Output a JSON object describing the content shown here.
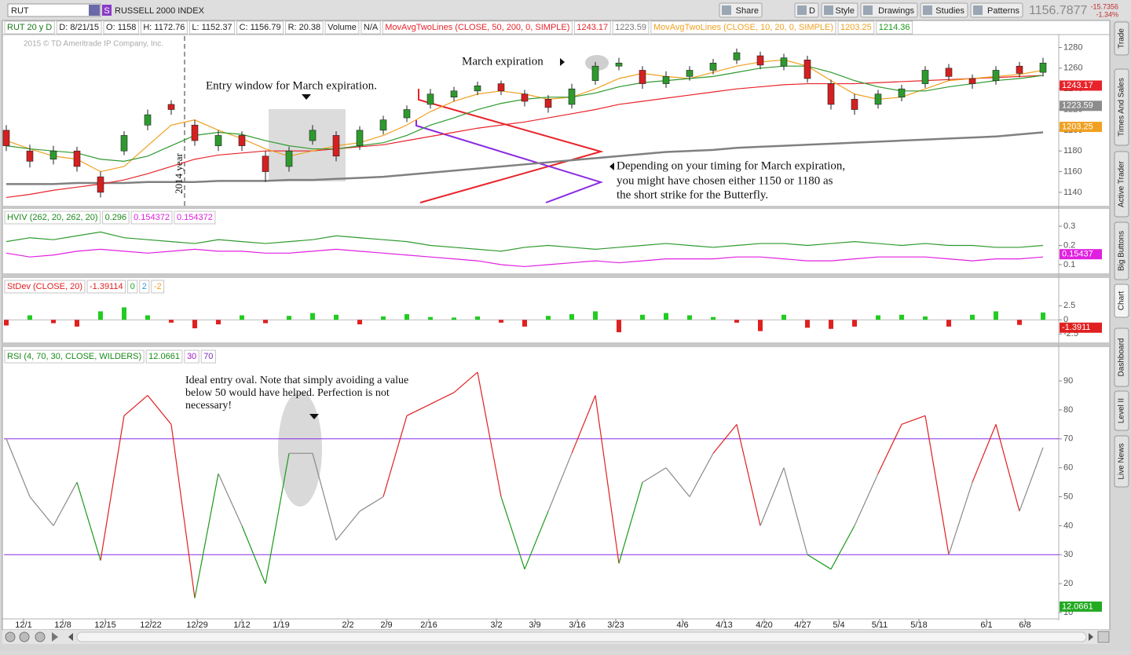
{
  "toolbar": {
    "symbol": "RUT",
    "badge": "S",
    "description": "RUSSELL 2000 INDEX",
    "buttons": [
      "Share",
      "D",
      "Style",
      "Drawings",
      "Studies",
      "Patterns"
    ],
    "last": "1156.7877",
    "change": "-15.7356",
    "change_pct": "-1.34%"
  },
  "info_bar": [
    "RUT 20 y D",
    "D: 8/21/15",
    "O: 1158",
    "H: 1172.76",
    "L: 1152.37",
    "C: 1156.79",
    "R: 20.38",
    "Volume",
    "N/A",
    "MovAvgTwoLines (CLOSE, 50, 200, 0, SIMPLE)",
    "1243.17",
    "1223.59",
    "MovAvgTwoLines (CLOSE, 10, 20, 0, SIMPLE)",
    "1203.25",
    "1214.36"
  ],
  "side_tabs": [
    "Trade",
    "Times And Sales",
    "Active Trader",
    "Big Buttons",
    "Chart",
    "Dashboard",
    "Level II",
    "Live News"
  ],
  "chart_data": [
    {
      "type": "candlestick",
      "copyright": "2015 © TD Ameritrade IP Company, Inc.",
      "annotations": [
        "Entry window for March expiration.",
        "March expiration",
        "Depending on your timing for March expiration,",
        "you might have chosen either 1150 or 1180 as",
        "the short strike for the Butterfly.",
        "2014 year"
      ],
      "xlim": [
        0,
        134
      ],
      "x": [
        0,
        3,
        6,
        9,
        12,
        15,
        18,
        21,
        24,
        27,
        30,
        33,
        36,
        39,
        42,
        45,
        48,
        51,
        54,
        57,
        60,
        63,
        66,
        69,
        72,
        75,
        78,
        81,
        84,
        87,
        90,
        93,
        96,
        99,
        102,
        105,
        108,
        111,
        114,
        117,
        120,
        123,
        126,
        129,
        132
      ],
      "open": [
        1200,
        1180,
        1172,
        1180,
        1155,
        1180,
        1205,
        1225,
        1205,
        1185,
        1195,
        1175,
        1165,
        1190,
        1195,
        1185,
        1200,
        1212,
        1225,
        1232,
        1238,
        1245,
        1235,
        1230,
        1225,
        1248,
        1262,
        1258,
        1245,
        1252,
        1258,
        1268,
        1272,
        1262,
        1268,
        1245,
        1230,
        1225,
        1232,
        1245,
        1260,
        1250,
        1248,
        1262,
        1256
      ],
      "high": [
        1205,
        1186,
        1185,
        1184,
        1160,
        1199,
        1220,
        1229,
        1210,
        1200,
        1199,
        1180,
        1184,
        1205,
        1199,
        1204,
        1214,
        1224,
        1240,
        1242,
        1247,
        1248,
        1239,
        1234,
        1245,
        1266,
        1270,
        1262,
        1257,
        1262,
        1269,
        1279,
        1276,
        1274,
        1272,
        1249,
        1235,
        1239,
        1244,
        1262,
        1264,
        1254,
        1262,
        1266,
        1270
      ],
      "low": [
        1180,
        1164,
        1167,
        1160,
        1135,
        1176,
        1200,
        1215,
        1185,
        1180,
        1180,
        1150,
        1160,
        1186,
        1170,
        1181,
        1196,
        1208,
        1221,
        1228,
        1234,
        1234,
        1223,
        1217,
        1221,
        1244,
        1258,
        1240,
        1241,
        1248,
        1254,
        1264,
        1259,
        1258,
        1246,
        1220,
        1215,
        1221,
        1228,
        1241,
        1248,
        1240,
        1244,
        1251,
        1252
      ],
      "close": [
        1185,
        1170,
        1180,
        1165,
        1140,
        1195,
        1215,
        1220,
        1190,
        1195,
        1185,
        1160,
        1180,
        1200,
        1175,
        1200,
        1210,
        1220,
        1235,
        1238,
        1243,
        1238,
        1228,
        1222,
        1240,
        1262,
        1265,
        1245,
        1252,
        1258,
        1265,
        1275,
        1263,
        1270,
        1250,
        1225,
        1220,
        1235,
        1240,
        1258,
        1252,
        1245,
        1258,
        1255,
        1265
      ],
      "series": [
        {
          "color": "#808080",
          "values": [
            1148,
            1148,
            1148,
            1149,
            1149,
            1149,
            1150,
            1150,
            1150,
            1151,
            1151,
            1151,
            1152,
            1152,
            1153,
            1154,
            1155,
            1157,
            1159,
            1161,
            1163,
            1165,
            1167,
            1169,
            1171,
            1173,
            1175,
            1177,
            1179,
            1180,
            1181,
            1183,
            1184,
            1185,
            1186,
            1187,
            1188,
            1189,
            1190,
            1191,
            1192,
            1193,
            1194,
            1196,
            1198
          ]
        },
        {
          "color": "#e8232a",
          "values": [
            1135,
            1138,
            1142,
            1145,
            1148,
            1152,
            1158,
            1165,
            1172,
            1176,
            1178,
            1180,
            1180,
            1180,
            1182,
            1184,
            1186,
            1190,
            1194,
            1198,
            1202,
            1205,
            1208,
            1212,
            1216,
            1220,
            1225,
            1228,
            1231,
            1234,
            1237,
            1240,
            1242,
            1244,
            1245,
            1245,
            1245,
            1246,
            1247,
            1248,
            1249,
            1250,
            1251,
            1252,
            1253
          ]
        },
        {
          "color": "#f0a020",
          "values": [
            1190,
            1182,
            1175,
            1172,
            1160,
            1165,
            1185,
            1205,
            1210,
            1200,
            1192,
            1182,
            1175,
            1180,
            1185,
            1188,
            1195,
            1205,
            1218,
            1228,
            1235,
            1238,
            1235,
            1230,
            1232,
            1240,
            1250,
            1255,
            1252,
            1250,
            1256,
            1262,
            1266,
            1268,
            1262,
            1248,
            1235,
            1230,
            1232,
            1240,
            1248,
            1250,
            1252,
            1254,
            1258
          ]
        },
        {
          "color": "#2e9a2e",
          "values": [
            1185,
            1182,
            1180,
            1178,
            1172,
            1170,
            1175,
            1185,
            1195,
            1198,
            1196,
            1190,
            1185,
            1182,
            1182,
            1185,
            1188,
            1195,
            1205,
            1212,
            1220,
            1226,
            1230,
            1232,
            1232,
            1236,
            1242,
            1246,
            1248,
            1250,
            1252,
            1256,
            1260,
            1262,
            1262,
            1256,
            1248,
            1242,
            1238,
            1238,
            1242,
            1245,
            1248,
            1250,
            1253
          ]
        }
      ],
      "up_color": "#2e9a2e",
      "down_color": "#d42020",
      "ylim": [
        1127,
        1291
      ],
      "yticks": [
        1140,
        1160,
        1180,
        1200,
        1220,
        1240,
        1260,
        1280
      ],
      "badges": [
        {
          "value": 1243.17,
          "color": "#e8232a"
        },
        {
          "value": 1223.59,
          "color": "#8c8c8c"
        },
        {
          "value": 1203.25,
          "color": "#f0a020"
        }
      ]
    },
    {
      "type": "line",
      "header": "HVIV (262, 20, 262, 20)",
      "header_values": [
        "0.296",
        "0.154372",
        "0.154372"
      ],
      "series": [
        {
          "color": "#2e9a2e",
          "values": [
            0.22,
            0.24,
            0.23,
            0.25,
            0.27,
            0.24,
            0.23,
            0.22,
            0.21,
            0.23,
            0.22,
            0.21,
            0.22,
            0.23,
            0.25,
            0.24,
            0.23,
            0.22,
            0.2,
            0.19,
            0.18,
            0.17,
            0.19,
            0.2,
            0.19,
            0.18,
            0.19,
            0.2,
            0.21,
            0.2,
            0.19,
            0.2,
            0.21,
            0.21,
            0.2,
            0.21,
            0.22,
            0.21,
            0.2,
            0.21,
            0.2,
            0.2,
            0.19,
            0.19,
            0.2
          ]
        },
        {
          "color": "#e020e0",
          "values": [
            0.16,
            0.14,
            0.15,
            0.17,
            0.18,
            0.17,
            0.16,
            0.17,
            0.18,
            0.17,
            0.17,
            0.16,
            0.16,
            0.17,
            0.18,
            0.17,
            0.16,
            0.15,
            0.14,
            0.13,
            0.12,
            0.1,
            0.09,
            0.1,
            0.11,
            0.12,
            0.11,
            0.12,
            0.13,
            0.13,
            0.13,
            0.14,
            0.14,
            0.13,
            0.12,
            0.12,
            0.13,
            0.14,
            0.14,
            0.14,
            0.13,
            0.12,
            0.13,
            0.13,
            0.14
          ]
        }
      ],
      "ylim": [
        0.055,
        0.39
      ],
      "yticks": [
        0.1,
        0.2,
        0.3
      ],
      "badges": [
        {
          "value": 0.15437,
          "color": "#e020e0"
        }
      ]
    },
    {
      "type": "bar",
      "header": "StDev (CLOSE, 20)",
      "header_values": [
        "-1.39114",
        "0",
        "2",
        "-2"
      ],
      "values": [
        -1,
        0.8,
        -0.6,
        -1.2,
        1.5,
        2.2,
        0.8,
        -0.5,
        -1.5,
        -0.8,
        0.8,
        -0.6,
        0.7,
        1.2,
        0.9,
        -0.8,
        0.6,
        1.0,
        0.5,
        0.4,
        0.6,
        -0.5,
        -1.2,
        0.7,
        1.0,
        1.5,
        -2.2,
        0.9,
        1.2,
        0.8,
        0.5,
        -0.5,
        -2.0,
        0.9,
        -1.4,
        -1.6,
        -1.2,
        0.8,
        0.9,
        0.6,
        -1.2,
        0.9,
        1.5,
        -0.9,
        1.3
      ],
      "up_color": "#22cc22",
      "down_color": "#e02020",
      "ylim": [
        -4,
        7.4
      ],
      "yticks": [
        -2.5,
        0,
        2.5
      ],
      "badges": [
        {
          "value": -1.3911,
          "color": "#e02020"
        }
      ]
    },
    {
      "type": "line",
      "header": "RSI (4, 70, 30, CLOSE, WILDERS)",
      "header_values": [
        "12.0661",
        "30",
        "70"
      ],
      "annotations": [
        "Ideal entry oval.  Note that simply avoiding a value",
        "below 50 would have helped.  Perfection is not",
        "necessary!"
      ],
      "values": [
        70,
        50,
        40,
        55,
        28,
        78,
        85,
        75,
        15,
        58,
        40,
        20,
        65,
        65,
        35,
        45,
        50,
        78,
        82,
        86,
        93,
        50,
        25,
        45,
        65,
        85,
        27,
        55,
        60,
        50,
        65,
        75,
        40,
        60,
        30,
        25,
        40,
        58,
        75,
        78,
        30,
        55,
        75,
        45,
        67
      ],
      "levels": [
        30,
        70
      ],
      "ylim": [
        8.1,
        101.4
      ],
      "yticks": [
        10,
        20,
        30,
        40,
        50,
        60,
        70,
        80,
        90
      ],
      "xticks": [
        {
          "value": 2.2,
          "label": "12/1"
        },
        {
          "value": 7.2,
          "label": "12/8"
        },
        {
          "value": 12.6,
          "label": "12/15"
        },
        {
          "value": 18.4,
          "label": "12/22"
        },
        {
          "value": 24.3,
          "label": "12/29"
        },
        {
          "value": 30,
          "label": "1/12"
        },
        {
          "value": 35,
          "label": "1/19"
        },
        {
          "value": 43.5,
          "label": "2/2"
        },
        {
          "value": 48.4,
          "label": "2/9"
        },
        {
          "value": 53.8,
          "label": "2/16"
        },
        {
          "value": 62.4,
          "label": "3/2"
        },
        {
          "value": 67.3,
          "label": "3/9"
        },
        {
          "value": 72.7,
          "label": "3/16"
        },
        {
          "value": 77.6,
          "label": "3/23"
        },
        {
          "value": 86.1,
          "label": "4/6"
        },
        {
          "value": 91.4,
          "label": "4/13"
        },
        {
          "value": 96.5,
          "label": "4/20"
        },
        {
          "value": 101.4,
          "label": "4/27"
        },
        {
          "value": 106,
          "label": "5/4"
        },
        {
          "value": 111.2,
          "label": "5/11"
        },
        {
          "value": 116.2,
          "label": "5/18"
        },
        {
          "value": 124.8,
          "label": "6/1"
        },
        {
          "value": 129.7,
          "label": "6/8"
        }
      ],
      "badges": [
        {
          "value": 12.0661,
          "color": "#22aa22"
        }
      ]
    }
  ]
}
